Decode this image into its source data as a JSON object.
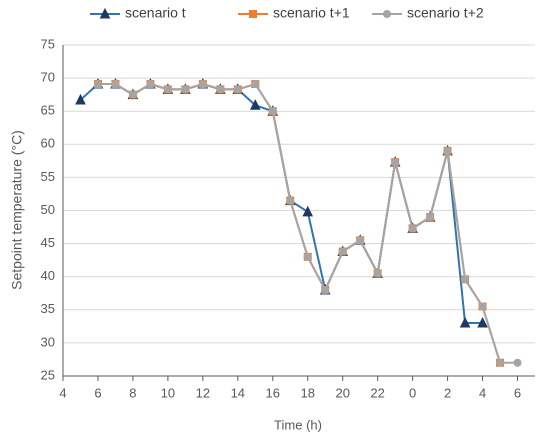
{
  "chart_data": {
    "type": "line",
    "x_label": "Time (h)",
    "y_label": "Setpoint temperature  (°C)",
    "x": [
      5,
      6,
      7,
      8,
      9,
      10,
      11,
      12,
      13,
      14,
      15,
      16,
      17,
      18,
      19,
      20,
      21,
      22,
      23,
      24,
      25,
      26,
      27,
      28,
      29,
      30
    ],
    "series": [
      {
        "name": "scenario t",
        "color": "#2e75b6",
        "marker": "triangle",
        "marker_color": "#1f3864",
        "values": [
          66.7,
          69.1,
          69.1,
          67.5,
          69.1,
          68.3,
          68.3,
          69.1,
          68.3,
          68.3,
          65.9,
          65.0,
          51.5,
          49.8,
          38,
          43.8,
          45.5,
          40.5,
          57.3,
          47.3,
          49,
          59,
          33,
          33,
          null,
          null
        ]
      },
      {
        "name": "scenario t+1",
        "color": "#ed7d31",
        "marker": "square",
        "marker_color": "#ed7d31",
        "values": [
          null,
          69.1,
          69.1,
          67.5,
          69.1,
          68.3,
          68.3,
          69.1,
          68.3,
          68.3,
          69.1,
          65.0,
          51.5,
          43,
          38,
          43.8,
          45.5,
          40.5,
          57.3,
          47.3,
          49,
          59,
          39.6,
          35.5,
          27,
          null
        ]
      },
      {
        "name": "scenario t+2",
        "color": "#a5a5a5",
        "marker": "circle",
        "marker_color": "#a5a5a5",
        "values": [
          null,
          69.1,
          69.1,
          67.5,
          69.1,
          68.3,
          68.3,
          69.1,
          68.3,
          68.3,
          69.1,
          65.0,
          51.5,
          43,
          38,
          43.8,
          45.5,
          40.5,
          57.3,
          47.3,
          49,
          59,
          39.6,
          35.5,
          27,
          27
        ]
      }
    ],
    "xlim": [
      4,
      31
    ],
    "xticks": [
      4,
      6,
      8,
      10,
      12,
      14,
      16,
      18,
      20,
      22,
      {
        "value": 24,
        "label": "0"
      },
      {
        "value": 26,
        "label": "2"
      },
      {
        "value": 28,
        "label": "4"
      },
      {
        "value": 30,
        "label": "6"
      }
    ],
    "ylim": [
      25,
      75
    ],
    "yticks": [
      25,
      30,
      35,
      40,
      45,
      50,
      55,
      60,
      65,
      70,
      75
    ],
    "grid": true,
    "legend": "top"
  }
}
